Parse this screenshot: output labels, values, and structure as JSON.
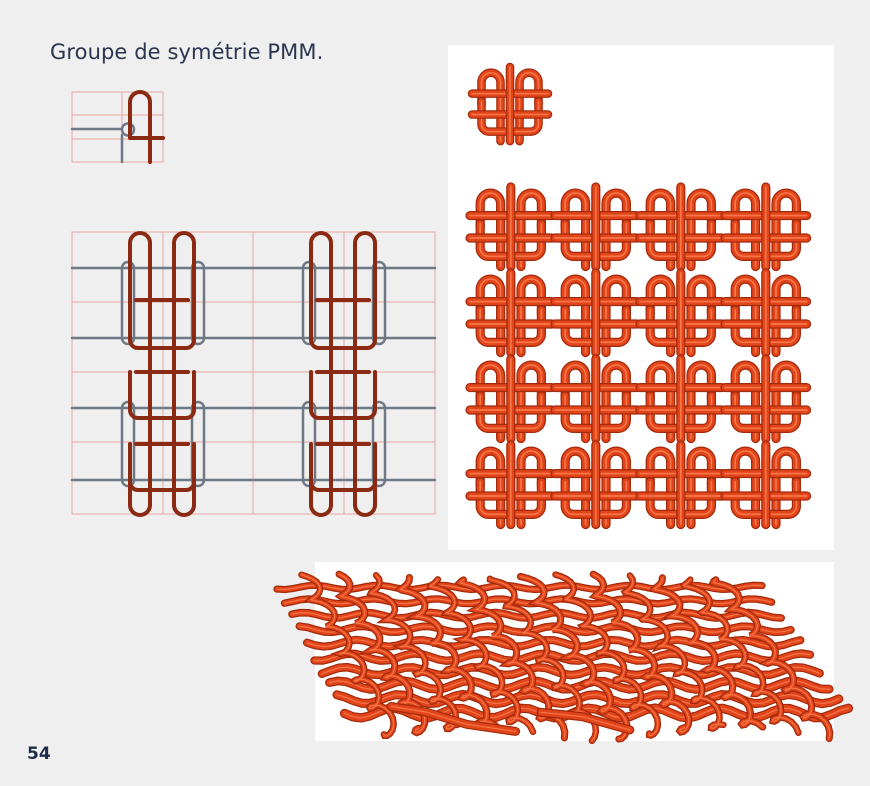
{
  "page": {
    "title": "Groupe de symétrie PMM.",
    "page_number": "54"
  },
  "colors": {
    "background": "#efefef",
    "title_text": "#2b3550",
    "strand_dark": "#8a2a12",
    "guide_grey": "#6f7885",
    "grid_pink": "#e8a4a4",
    "rope_orange": "#e2451a",
    "rope_highlight": "#ff8a5c",
    "rope_shadow": "#a32a0c"
  },
  "icons": {
    "motif": "pmm-motif-icon",
    "tiling": "pmm-tiling-diagram",
    "render": "woven-fabric-render"
  }
}
